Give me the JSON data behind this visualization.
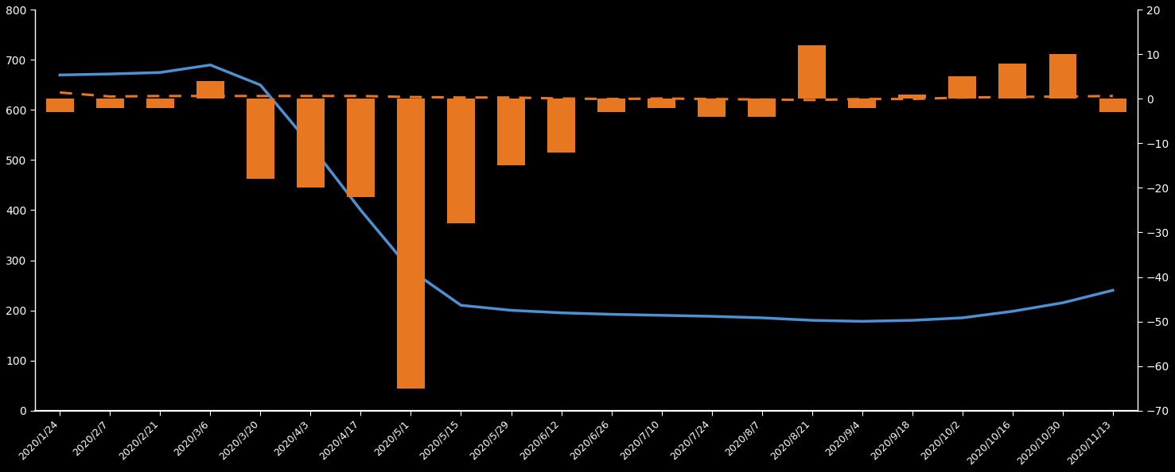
{
  "dates": [
    "2020/1/24",
    "2020/2/7",
    "2020/2/21",
    "2020/3/6",
    "2020/3/20",
    "2020/4/3",
    "2020/4/17",
    "2020/5/1",
    "2020/5/15",
    "2020/5/29",
    "2020/6/12",
    "2020/6/26",
    "2020/7/10",
    "2020/7/24",
    "2020/8/7",
    "2020/8/21",
    "2020/9/4",
    "2020/9/18",
    "2020/10/2",
    "2020/10/16",
    "2020/10/30",
    "2020/11/13"
  ],
  "line_values": [
    670,
    672,
    675,
    690,
    650,
    530,
    400,
    280,
    210,
    200,
    195,
    192,
    190,
    188,
    185,
    180,
    178,
    180,
    185,
    198,
    215,
    240
  ],
  "bar_values": [
    -3,
    -2,
    -2,
    4,
    -18,
    -20,
    -22,
    -65,
    -28,
    -15,
    -12,
    -3,
    -2,
    -4,
    -4,
    12,
    -2,
    1,
    5,
    8,
    10,
    -3
  ],
  "dashed_line_values": [
    635,
    627,
    628,
    628,
    628,
    628,
    628,
    626,
    625,
    625,
    623,
    622,
    623,
    622,
    621,
    620,
    622,
    622,
    625,
    626,
    627,
    628
  ],
  "background_color": "#000000",
  "bar_color": "#E87722",
  "line_color": "#4E91D2",
  "dashed_line_color": "#E87722",
  "left_ylim": [
    0,
    800
  ],
  "right_ylim": [
    -70,
    20
  ],
  "left_yticks": [
    0,
    100,
    200,
    300,
    400,
    500,
    600,
    700,
    800
  ],
  "right_yticks": [
    -70,
    -60,
    -50,
    -40,
    -30,
    -20,
    -10,
    0,
    10,
    20
  ]
}
